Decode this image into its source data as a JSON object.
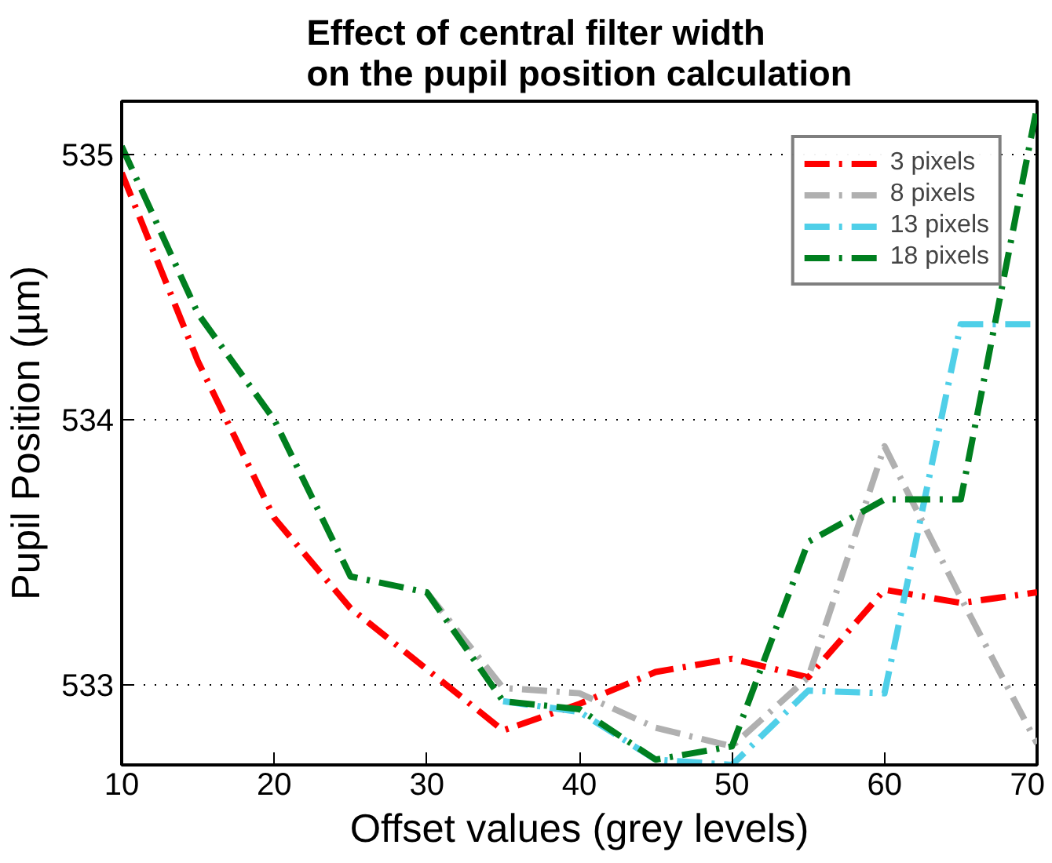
{
  "chart_data": {
    "type": "line",
    "title": "Effect of central filter width\non the pupil position calculation",
    "xlabel": "Offset values (grey levels)",
    "ylabel": "Pupil Position (µm)",
    "x": [
      10,
      15,
      20,
      25,
      30,
      35,
      40,
      45,
      50,
      55,
      60,
      65,
      70
    ],
    "series": [
      {
        "name": "3 pixels",
        "color": "#ff0000",
        "values": [
          534.93,
          534.22,
          533.63,
          533.29,
          533.06,
          532.83,
          532.93,
          533.05,
          533.1,
          533.03,
          533.36,
          533.31,
          533.35
        ]
      },
      {
        "name": "8 pixels",
        "color": "#b0b0b0",
        "values": [
          null,
          null,
          null,
          null,
          533.35,
          532.99,
          532.97,
          532.84,
          532.77,
          533.03,
          533.9,
          533.33,
          532.78
        ]
      },
      {
        "name": "13 pixels",
        "color": "#4fcfe8",
        "values": [
          null,
          null,
          null,
          null,
          null,
          532.94,
          532.9,
          532.72,
          532.7,
          532.98,
          532.97,
          534.36,
          534.36
        ]
      },
      {
        "name": "18 pixels",
        "color": "#007f1f",
        "values": [
          535.03,
          534.4,
          534.0,
          533.41,
          533.35,
          532.94,
          532.91,
          532.72,
          532.77,
          533.54,
          533.7,
          533.7,
          535.18
        ]
      }
    ],
    "xlim": [
      10,
      70
    ],
    "ylim": [
      532.7,
      535.2
    ],
    "xticks": [
      10,
      20,
      30,
      40,
      50,
      60,
      70
    ],
    "yticks": [
      533,
      534,
      535
    ],
    "grid": "y",
    "legend": "top right",
    "line_style": "dashdot",
    "marker": "none"
  }
}
